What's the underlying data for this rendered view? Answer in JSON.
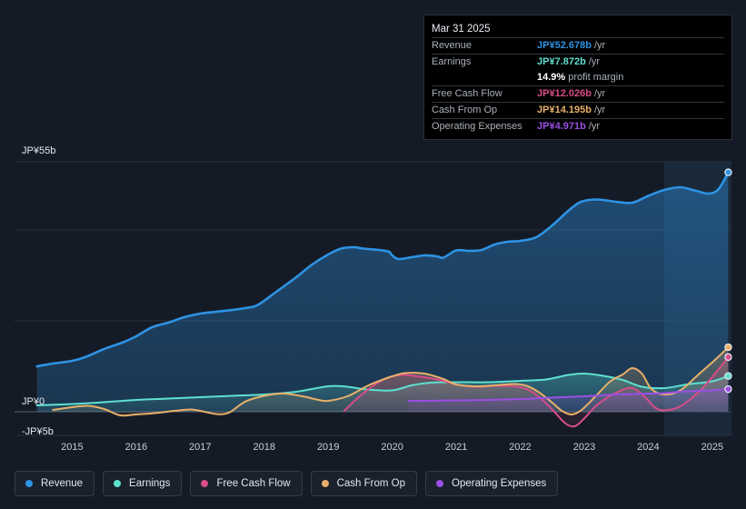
{
  "chart_data": {
    "type": "area",
    "title": "",
    "xlabel": "",
    "ylabel": "",
    "y_unit": "JP¥",
    "y_axis_labels": [
      {
        "value": 55,
        "label": "JP¥55b"
      },
      {
        "value": 0,
        "label": "JP¥0"
      },
      {
        "value": -5,
        "label": "-JP¥5b"
      }
    ],
    "ylim": [
      -5,
      55
    ],
    "x_ticks": [
      2015,
      2016,
      2017,
      2018,
      2019,
      2020,
      2021,
      2022,
      2023,
      2024,
      2025
    ],
    "x_tick_labels": [
      "2015",
      "2016",
      "2017",
      "2018",
      "2019",
      "2020",
      "2021",
      "2022",
      "2023",
      "2024",
      "2025"
    ],
    "xlim": [
      2014.1,
      2025.3
    ],
    "forecast_region_start": 2024.25,
    "series": [
      {
        "name": "Revenue",
        "color": "#2e93e3",
        "fill": true,
        "points": [
          [
            2014.45,
            10
          ],
          [
            2014.7,
            10.6
          ],
          [
            2015.0,
            11.2
          ],
          [
            2015.2,
            12
          ],
          [
            2015.5,
            13.8
          ],
          [
            2015.8,
            15.3
          ],
          [
            2016.0,
            16.6
          ],
          [
            2016.25,
            18.6
          ],
          [
            2016.5,
            19.6
          ],
          [
            2016.75,
            20.8
          ],
          [
            2017.0,
            21.6
          ],
          [
            2017.25,
            22
          ],
          [
            2017.5,
            22.4
          ],
          [
            2017.7,
            22.8
          ],
          [
            2017.9,
            23.5
          ],
          [
            2018.2,
            26.5
          ],
          [
            2018.5,
            29.6
          ],
          [
            2018.75,
            32.4
          ],
          [
            2019.0,
            34.6
          ],
          [
            2019.2,
            35.9
          ],
          [
            2019.4,
            36.2
          ],
          [
            2019.55,
            35.9
          ],
          [
            2019.8,
            35.6
          ],
          [
            2019.95,
            35.2
          ],
          [
            2020.0,
            34.4
          ],
          [
            2020.1,
            33.6
          ],
          [
            2020.3,
            34
          ],
          [
            2020.5,
            34.4
          ],
          [
            2020.7,
            34.2
          ],
          [
            2020.8,
            33.9
          ],
          [
            2021.0,
            35.5
          ],
          [
            2021.2,
            35.4
          ],
          [
            2021.4,
            35.6
          ],
          [
            2021.6,
            36.8
          ],
          [
            2021.8,
            37.4
          ],
          [
            2022.0,
            37.6
          ],
          [
            2022.25,
            38.4
          ],
          [
            2022.5,
            41
          ],
          [
            2022.75,
            44.2
          ],
          [
            2022.95,
            46.2
          ],
          [
            2023.2,
            46.7
          ],
          [
            2023.5,
            46.2
          ],
          [
            2023.75,
            46
          ],
          [
            2024.0,
            47.5
          ],
          [
            2024.25,
            48.8
          ],
          [
            2024.5,
            49.4
          ],
          [
            2024.75,
            48.6
          ],
          [
            2024.95,
            48
          ],
          [
            2025.1,
            49
          ],
          [
            2025.25,
            52.678
          ]
        ]
      },
      {
        "name": "Earnings",
        "color": "#5ee0d0",
        "fill": true,
        "points": [
          [
            2014.45,
            1.4
          ],
          [
            2015.0,
            1.7
          ],
          [
            2015.5,
            2.1
          ],
          [
            2016.0,
            2.6
          ],
          [
            2016.5,
            2.9
          ],
          [
            2017.0,
            3.2
          ],
          [
            2017.5,
            3.5
          ],
          [
            2018.0,
            3.8
          ],
          [
            2018.5,
            4.4
          ],
          [
            2019.0,
            5.6
          ],
          [
            2019.3,
            5.5
          ],
          [
            2019.6,
            4.9
          ],
          [
            2020.0,
            4.7
          ],
          [
            2020.3,
            5.8
          ],
          [
            2020.6,
            6.4
          ],
          [
            2021.0,
            6.5
          ],
          [
            2021.5,
            6.5
          ],
          [
            2022.0,
            6.8
          ],
          [
            2022.4,
            7.1
          ],
          [
            2022.75,
            8.1
          ],
          [
            2023.0,
            8.4
          ],
          [
            2023.3,
            7.9
          ],
          [
            2023.6,
            7
          ],
          [
            2023.9,
            5.5
          ],
          [
            2024.25,
            5.2
          ],
          [
            2024.6,
            6
          ],
          [
            2025.0,
            6.7
          ],
          [
            2025.25,
            7.872
          ]
        ]
      },
      {
        "name": "Free Cash Flow",
        "color": "#d84d8a",
        "fill": true,
        "points": [
          [
            2019.25,
            0.2
          ],
          [
            2019.5,
            3.5
          ],
          [
            2019.8,
            6.6
          ],
          [
            2020.0,
            7.8
          ],
          [
            2020.2,
            8.1
          ],
          [
            2020.5,
            7.6
          ],
          [
            2020.8,
            6.8
          ],
          [
            2021.0,
            6
          ],
          [
            2021.3,
            5.5
          ],
          [
            2021.6,
            5.7
          ],
          [
            2021.9,
            5.6
          ],
          [
            2022.1,
            5
          ],
          [
            2022.3,
            3.2
          ],
          [
            2022.5,
            0.5
          ],
          [
            2022.7,
            -2.5
          ],
          [
            2022.85,
            -3.2
          ],
          [
            2023.0,
            -1.5
          ],
          [
            2023.2,
            1.5
          ],
          [
            2023.5,
            4.2
          ],
          [
            2023.75,
            5.2
          ],
          [
            2023.95,
            3.2
          ],
          [
            2024.1,
            1
          ],
          [
            2024.25,
            0.3
          ],
          [
            2024.5,
            1.2
          ],
          [
            2024.8,
            4.5
          ],
          [
            2025.05,
            8.5
          ],
          [
            2025.25,
            12.026
          ]
        ]
      },
      {
        "name": "Cash From Op",
        "color": "#e8b06a",
        "fill": true,
        "points": [
          [
            2014.7,
            0.4
          ],
          [
            2015.0,
            1
          ],
          [
            2015.25,
            1.3
          ],
          [
            2015.5,
            0.6
          ],
          [
            2015.75,
            -0.8
          ],
          [
            2016.0,
            -0.6
          ],
          [
            2016.3,
            -0.3
          ],
          [
            2016.6,
            0.2
          ],
          [
            2016.85,
            0.5
          ],
          [
            2017.0,
            0.2
          ],
          [
            2017.25,
            -0.5
          ],
          [
            2017.45,
            -0.2
          ],
          [
            2017.7,
            2.2
          ],
          [
            2018.0,
            3.5
          ],
          [
            2018.3,
            4
          ],
          [
            2018.6,
            3.4
          ],
          [
            2018.85,
            2.6
          ],
          [
            2019.0,
            2.4
          ],
          [
            2019.3,
            3.4
          ],
          [
            2019.6,
            5.6
          ],
          [
            2019.8,
            6.8
          ],
          [
            2020.0,
            7.8
          ],
          [
            2020.2,
            8.5
          ],
          [
            2020.5,
            8.4
          ],
          [
            2020.8,
            7.2
          ],
          [
            2021.0,
            6
          ],
          [
            2021.3,
            5.6
          ],
          [
            2021.6,
            5.8
          ],
          [
            2021.9,
            6.1
          ],
          [
            2022.1,
            5.7
          ],
          [
            2022.3,
            4.2
          ],
          [
            2022.5,
            2
          ],
          [
            2022.65,
            0.2
          ],
          [
            2022.8,
            -0.6
          ],
          [
            2022.95,
            0.3
          ],
          [
            2023.15,
            3
          ],
          [
            2023.4,
            6.6
          ],
          [
            2023.6,
            8.2
          ],
          [
            2023.75,
            9.6
          ],
          [
            2023.9,
            8.4
          ],
          [
            2024.05,
            5
          ],
          [
            2024.25,
            3.8
          ],
          [
            2024.5,
            4.7
          ],
          [
            2024.8,
            8.4
          ],
          [
            2025.05,
            11.5
          ],
          [
            2025.25,
            14.195
          ]
        ]
      },
      {
        "name": "Operating Expenses",
        "color": "#9a4fe3",
        "fill": true,
        "points": [
          [
            2020.25,
            2.4
          ],
          [
            2020.5,
            2.4
          ],
          [
            2021.0,
            2.5
          ],
          [
            2021.5,
            2.6
          ],
          [
            2022.0,
            2.8
          ],
          [
            2022.5,
            3.1
          ],
          [
            2023.0,
            3.4
          ],
          [
            2023.5,
            3.8
          ],
          [
            2024.0,
            4
          ],
          [
            2024.25,
            4.1
          ],
          [
            2024.6,
            4.5
          ],
          [
            2025.0,
            4.7
          ],
          [
            2025.25,
            4.971
          ]
        ]
      }
    ]
  },
  "tooltip": {
    "date": "Mar 31 2025",
    "rows": [
      {
        "label": "Revenue",
        "value": "JP¥52.678b",
        "unit": "/yr",
        "color": "#2e93e3"
      },
      {
        "label": "Earnings",
        "value": "JP¥7.872b",
        "unit": "/yr",
        "color": "#5ee0d0"
      },
      {
        "label": "",
        "value": "14.9%",
        "unit": "profit margin",
        "color": "#ffffff"
      },
      {
        "label": "Free Cash Flow",
        "value": "JP¥12.026b",
        "unit": "/yr",
        "color": "#d84d8a"
      },
      {
        "label": "Cash From Op",
        "value": "JP¥14.195b",
        "unit": "/yr",
        "color": "#e8b06a"
      },
      {
        "label": "Operating Expenses",
        "value": "JP¥4.971b",
        "unit": "/yr",
        "color": "#9a4fe3"
      }
    ]
  },
  "legend": [
    {
      "label": "Revenue",
      "color": "#2e93e3"
    },
    {
      "label": "Earnings",
      "color": "#5ee0d0"
    },
    {
      "label": "Free Cash Flow",
      "color": "#d84d8a"
    },
    {
      "label": "Cash From Op",
      "color": "#e8b06a"
    },
    {
      "label": "Operating Expenses",
      "color": "#9a4fe3"
    }
  ]
}
